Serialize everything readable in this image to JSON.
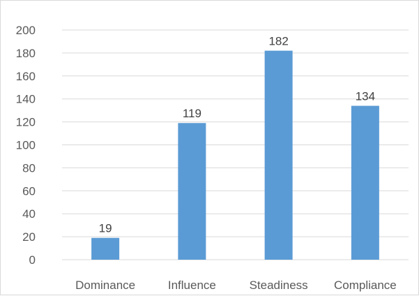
{
  "chart_data": {
    "type": "bar",
    "categories": [
      "Dominance",
      "Influence",
      "Steadiness",
      "Compliance"
    ],
    "values": [
      19,
      119,
      182,
      134
    ],
    "data_labels": [
      "19",
      "119",
      "182",
      "134"
    ],
    "ylim": [
      0,
      200
    ],
    "yticks": [
      0,
      20,
      40,
      60,
      80,
      100,
      120,
      140,
      160,
      180,
      200
    ],
    "ytick_labels": [
      "0",
      "20",
      "40",
      "60",
      "80",
      "100",
      "120",
      "140",
      "160",
      "180",
      "200"
    ],
    "grid": true,
    "legend": "none",
    "bar_color": "#5b9bd5"
  }
}
